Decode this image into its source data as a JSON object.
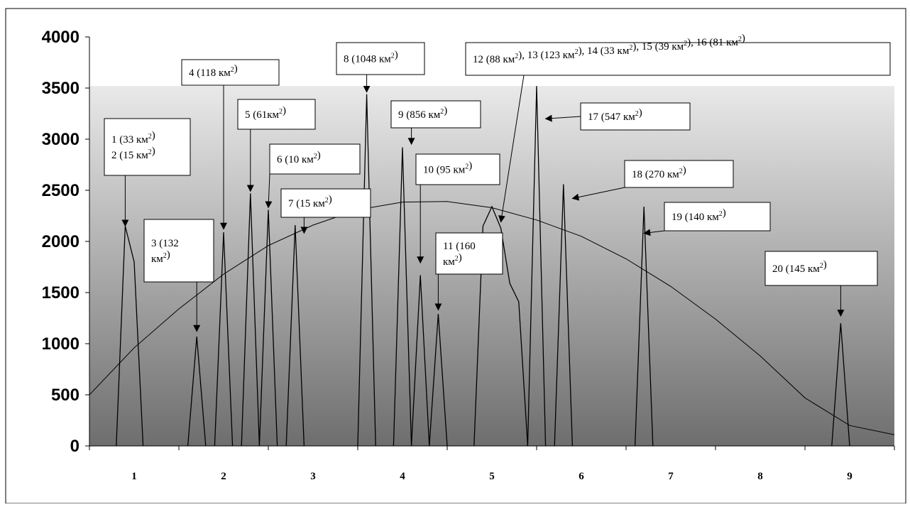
{
  "chart_data": {
    "type": "line",
    "title": "",
    "xlabel": "",
    "ylabel": "",
    "xlim": [
      0.5,
      9.5
    ],
    "ylim": [
      0,
      4000
    ],
    "x_ticks": [
      "1",
      "2",
      "3",
      "4",
      "5",
      "6",
      "7",
      "8",
      "9"
    ],
    "y_ticks": [
      "0",
      "500",
      "1000",
      "1500",
      "2000",
      "2500",
      "3000",
      "3500",
      "4000"
    ],
    "grid": false,
    "legend": "none",
    "series": [
      {
        "kind": "polyline",
        "segments": [
          [
            [
              0.8,
              0
            ],
            [
              0.9,
              2150
            ],
            [
              1.0,
              1800
            ],
            [
              1.1,
              0
            ]
          ],
          [
            [
              1.6,
              0
            ],
            [
              1.7,
              1070
            ],
            [
              1.8,
              0
            ]
          ],
          [
            [
              1.9,
              0
            ],
            [
              2.0,
              2090
            ],
            [
              2.1,
              0
            ]
          ],
          [
            [
              2.2,
              0
            ],
            [
              2.3,
              2470
            ],
            [
              2.4,
              0
            ]
          ],
          [
            [
              2.4,
              0
            ],
            [
              2.5,
              2310
            ],
            [
              2.6,
              0
            ]
          ],
          [
            [
              2.7,
              0
            ],
            [
              2.8,
              2160
            ],
            [
              2.9,
              0
            ]
          ],
          [
            [
              3.5,
              0
            ],
            [
              3.6,
              3440
            ],
            [
              3.7,
              0
            ]
          ],
          [
            [
              3.9,
              0
            ],
            [
              4.0,
              2920
            ],
            [
              4.1,
              0
            ]
          ],
          [
            [
              4.1,
              0
            ],
            [
              4.2,
              1670
            ],
            [
              4.3,
              0
            ]
          ],
          [
            [
              4.3,
              0
            ],
            [
              4.4,
              1290
            ],
            [
              4.5,
              0
            ]
          ],
          [
            [
              4.8,
              0
            ],
            [
              4.9,
              2150
            ],
            [
              5.0,
              2340
            ],
            [
              5.1,
              2130
            ],
            [
              5.2,
              1590
            ],
            [
              5.3,
              1410
            ],
            [
              5.4,
              0
            ]
          ],
          [
            [
              5.4,
              0
            ],
            [
              5.5,
              3520
            ],
            [
              5.6,
              0
            ]
          ],
          [
            [
              5.7,
              0
            ],
            [
              5.8,
              2560
            ],
            [
              5.9,
              0
            ]
          ],
          [
            [
              6.6,
              0
            ],
            [
              6.7,
              2340
            ],
            [
              6.8,
              0
            ]
          ],
          [
            [
              8.8,
              0
            ],
            [
              8.9,
              1200
            ],
            [
              9.0,
              0
            ]
          ]
        ]
      },
      {
        "kind": "trend",
        "x": [
          0.5,
          1.0,
          1.5,
          2.0,
          2.5,
          3.0,
          3.5,
          4.0,
          4.5,
          5.0,
          5.5,
          6.0,
          6.5,
          7.0,
          7.5,
          8.0,
          8.5,
          9.0,
          9.5
        ],
        "values": [
          500,
          960,
          1340,
          1680,
          1960,
          2160,
          2310,
          2385,
          2390,
          2330,
          2210,
          2050,
          1830,
          1560,
          1240,
          880,
          470,
          200,
          110
        ]
      }
    ],
    "annotations": [
      {
        "lines": [
          [
            {
              "t": "1 (33 км"
            },
            {
              "t": "2",
              "sup": true
            },
            {
              "t": ")"
            }
          ],
          [
            {
              "t": "2 (15 км"
            },
            {
              "t": "2",
              "sup": true
            },
            {
              "t": ")"
            }
          ]
        ],
        "tx": 0.9,
        "ty": 2150
      },
      {
        "lines": [
          [
            {
              "t": "3 (132"
            }
          ],
          [
            {
              "t": "км"
            },
            {
              "t": "2",
              "sup": true
            },
            {
              "t": ")"
            }
          ]
        ],
        "tx": 1.7,
        "ty": 1120
      },
      {
        "lines": [
          [
            {
              "t": "4 (118 км"
            },
            {
              "t": "2",
              "sup": true
            },
            {
              "t": ")"
            }
          ]
        ],
        "tx": 2.0,
        "ty": 2120
      },
      {
        "lines": [
          [
            {
              "t": "5 (61км"
            },
            {
              "t": "2",
              "sup": true
            },
            {
              "t": ")"
            }
          ]
        ],
        "tx": 2.3,
        "ty": 2490
      },
      {
        "lines": [
          [
            {
              "t": "6 (10 км"
            },
            {
              "t": "2",
              "sup": true
            },
            {
              "t": ")"
            }
          ]
        ],
        "tx": 2.5,
        "ty": 2330
      },
      {
        "lines": [
          [
            {
              "t": "7 (15 км"
            },
            {
              "t": "2",
              "sup": true
            },
            {
              "t": ")"
            }
          ]
        ],
        "tx": 2.9,
        "ty": 2080
      },
      {
        "lines": [
          [
            {
              "t": "8 (1048 км"
            },
            {
              "t": "2",
              "sup": true
            },
            {
              "t": ")"
            }
          ]
        ],
        "tx": 3.6,
        "ty": 3460
      },
      {
        "lines": [
          [
            {
              "t": "9 (856 км"
            },
            {
              "t": "2",
              "sup": true
            },
            {
              "t": ")"
            }
          ]
        ],
        "tx": 4.1,
        "ty": 2950
      },
      {
        "lines": [
          [
            {
              "t": "10 (95 км"
            },
            {
              "t": "2",
              "sup": true
            },
            {
              "t": ")"
            }
          ]
        ],
        "tx": 4.2,
        "ty": 1790
      },
      {
        "lines": [
          [
            {
              "t": "11 (160"
            }
          ],
          [
            {
              "t": "км"
            },
            {
              "t": "2",
              "sup": true
            },
            {
              "t": ")"
            }
          ]
        ],
        "tx": 4.4,
        "ty": 1330
      },
      {
        "lines": [
          [
            {
              "t": "12 (88 км"
            },
            {
              "t": "2",
              "sup": true
            },
            {
              "t": "), 13 (123 км"
            },
            {
              "t": "2",
              "sup": true
            },
            {
              "t": "), 14 (33 км"
            },
            {
              "t": "2",
              "sup": true
            },
            {
              "t": "), 15 (39 км"
            },
            {
              "t": "2",
              "sup": true
            },
            {
              "t": "), 16 (81 км"
            },
            {
              "t": "2",
              "sup": true
            },
            {
              "t": ")"
            }
          ]
        ],
        "tx": 5.1,
        "ty": 2190
      },
      {
        "lines": [
          [
            {
              "t": "17 (547 км"
            },
            {
              "t": "2",
              "sup": true
            },
            {
              "t": ")"
            }
          ]
        ],
        "tx": 5.6,
        "ty": 3200
      },
      {
        "lines": [
          [
            {
              "t": "18 (270 км"
            },
            {
              "t": "2",
              "sup": true
            },
            {
              "t": ")"
            }
          ]
        ],
        "tx": 5.9,
        "ty": 2420
      },
      {
        "lines": [
          [
            {
              "t": "19 (140 км"
            },
            {
              "t": "2",
              "sup": true
            },
            {
              "t": ")"
            }
          ]
        ],
        "tx": 6.7,
        "ty": 2080
      },
      {
        "lines": [
          [
            {
              "t": "20 (145 км"
            },
            {
              "t": "2",
              "sup": true
            },
            {
              "t": ")"
            }
          ]
        ],
        "tx": 8.9,
        "ty": 1270
      }
    ]
  }
}
